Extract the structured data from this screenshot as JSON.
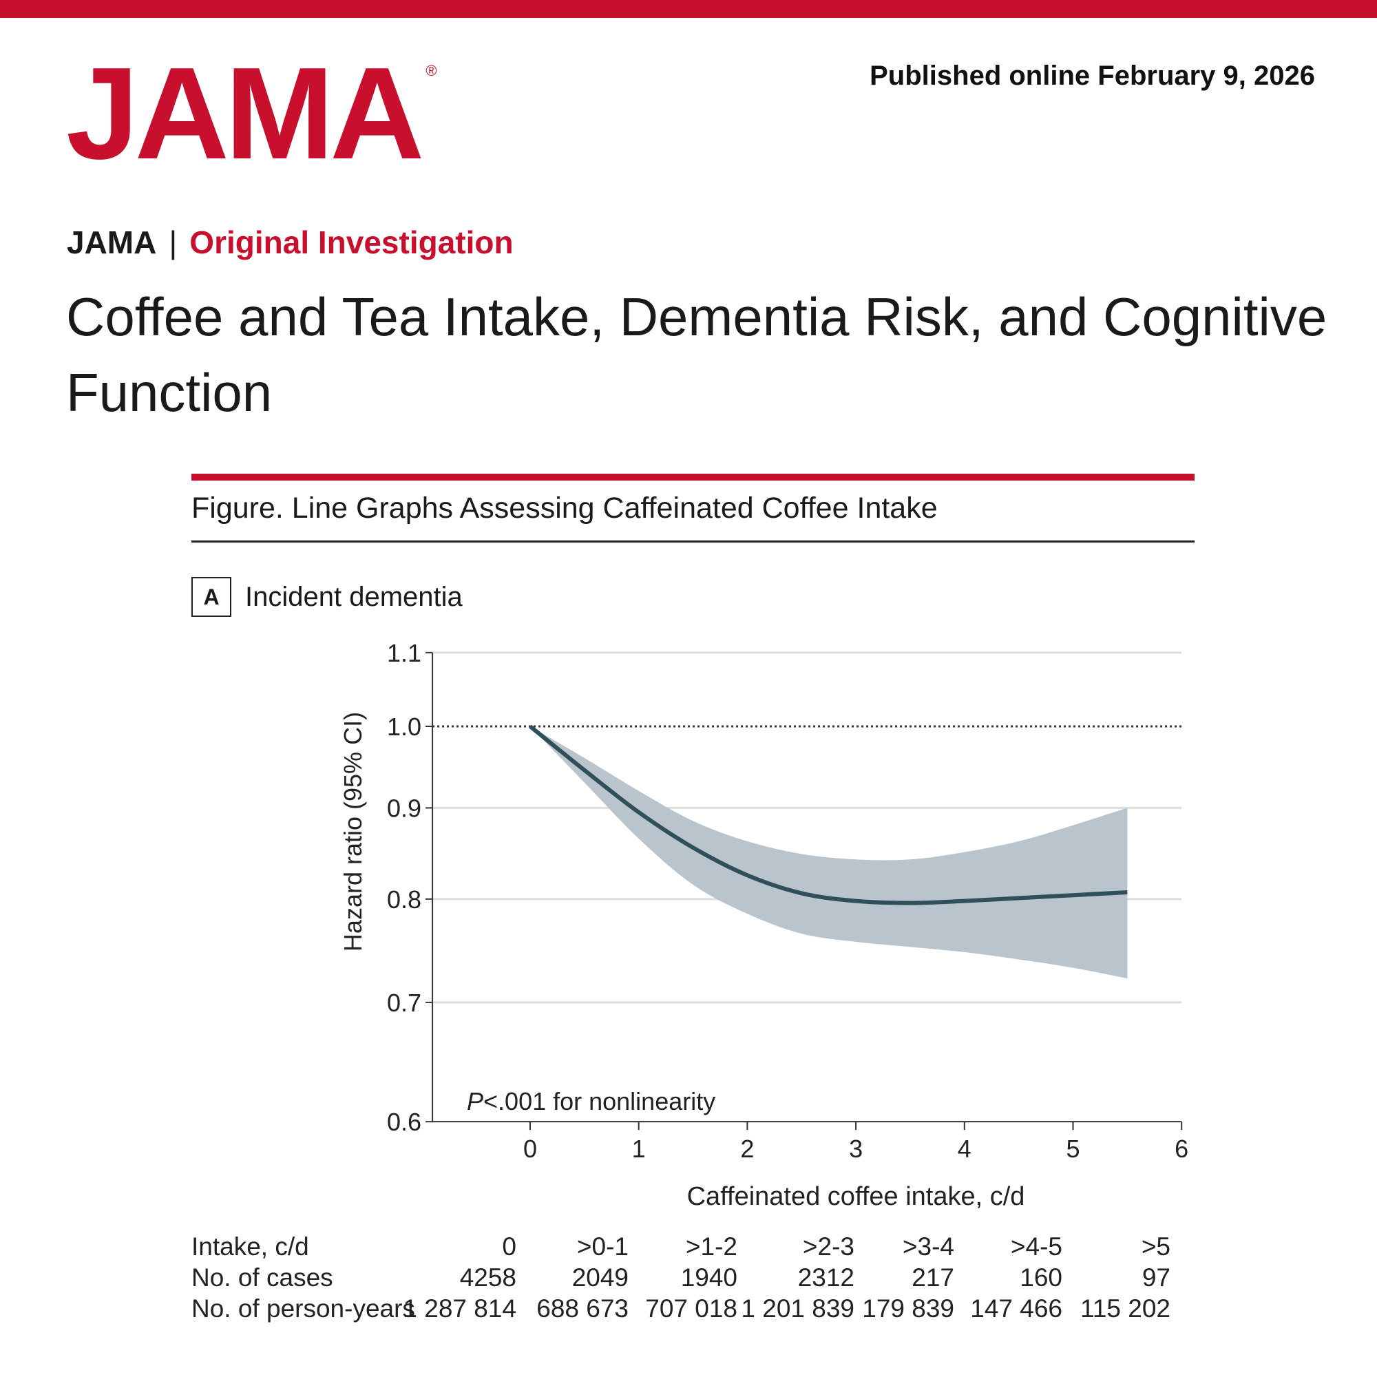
{
  "header": {
    "logo_text": "JAMA",
    "logo_mark": "®",
    "published": "Published online February 9, 2026",
    "journal": "JAMA",
    "separator": "|",
    "article_type": "Original Investigation",
    "title": "Coffee and Tea Intake, Dementia Risk, and Cognitive Function"
  },
  "figure": {
    "title": "Figure. Line Graphs Assessing Caffeinated Coffee Intake",
    "panel_label": "A",
    "panel_title": "Incident dementia"
  },
  "colors": {
    "brand": "#c8102e",
    "line": "#2f4f5a",
    "band": "#b9c4cc"
  },
  "chart_data": {
    "type": "line",
    "xlabel": "Caffeinated coffee intake, c/d",
    "ylabel": "Hazard ratio (95% CI)",
    "xlim": [
      -0.9,
      6
    ],
    "ylim": [
      0.6,
      1.1
    ],
    "y_scale": "log",
    "x_ticks": [
      "0",
      "1",
      "2",
      "3",
      "4",
      "5",
      "6"
    ],
    "y_ticks": [
      "0.6",
      "0.7",
      "0.8",
      "0.9",
      "1.0",
      "1.1"
    ],
    "grid": "horizontal",
    "reference_line": 1.0,
    "annotation": {
      "p": "P",
      "rest": "<.001 for nonlinearity"
    },
    "x": [
      0,
      0.5,
      1,
      1.5,
      2,
      2.5,
      3,
      3.5,
      4,
      4.5,
      5,
      5.5
    ],
    "hr": [
      1.0,
      0.945,
      0.895,
      0.855,
      0.825,
      0.806,
      0.798,
      0.796,
      0.798,
      0.801,
      0.804,
      0.807
    ],
    "ci_upper": [
      1.0,
      0.96,
      0.92,
      0.885,
      0.862,
      0.848,
      0.842,
      0.842,
      0.85,
      0.862,
      0.88,
      0.9
    ],
    "ci_lower": [
      1.0,
      0.93,
      0.865,
      0.815,
      0.785,
      0.765,
      0.757,
      0.752,
      0.747,
      0.74,
      0.732,
      0.722
    ]
  },
  "table": {
    "rows": [
      {
        "label": "Intake, c/d",
        "values": [
          "0",
          ">0-1",
          ">1-2",
          ">2-3",
          ">3-4",
          ">4-5",
          ">5"
        ]
      },
      {
        "label": "No. of cases",
        "values": [
          "4258",
          "2049",
          "1940",
          "2312",
          "217",
          "160",
          "97"
        ]
      },
      {
        "label": "No. of person-years",
        "values": [
          "1 287 814",
          "688 673",
          "707 018",
          "1 201 839",
          "179 839",
          "147 466",
          "115 202"
        ]
      }
    ]
  }
}
